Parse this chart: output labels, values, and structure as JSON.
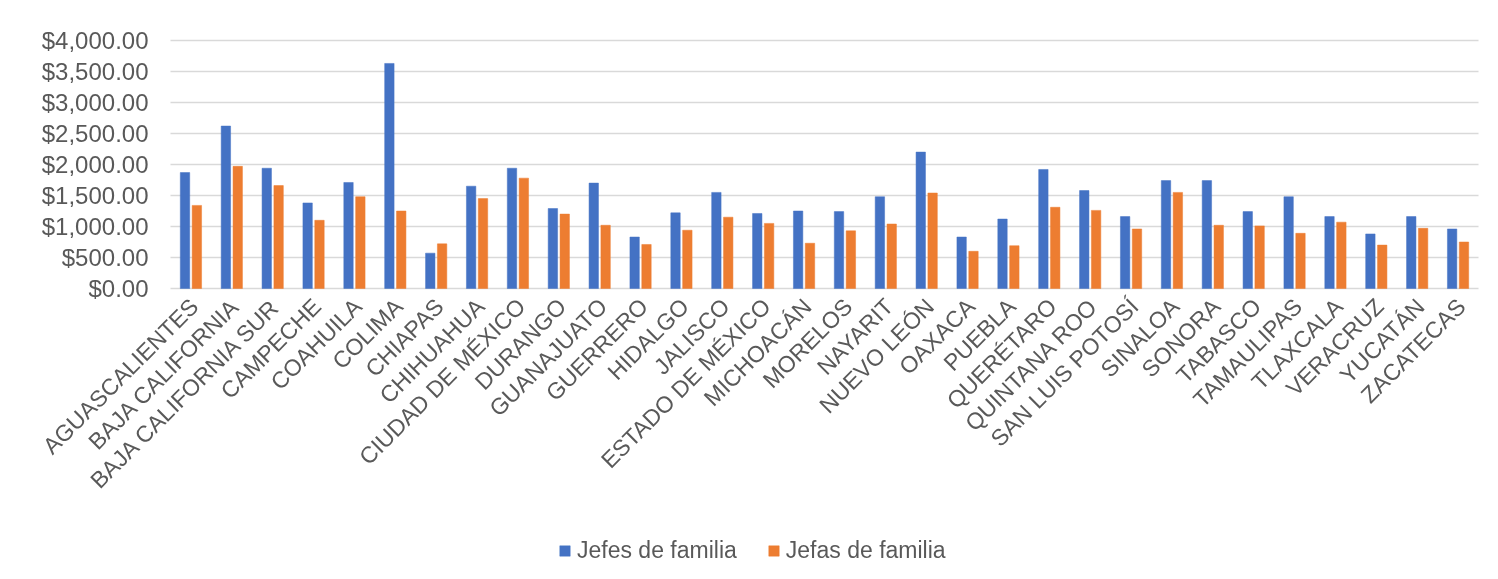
{
  "chart_data": {
    "type": "bar",
    "categories": [
      "AGUASCALIENTES",
      "BAJA CALIFORNIA",
      "BAJA CALIFORNIA SUR",
      "CAMPECHE",
      "COAHUILA",
      "COLIMA",
      "CHIAPAS",
      "CHIHUAHUA",
      "CIUDAD DE MÉXICO",
      "DURANGO",
      "GUANAJUATO",
      "GUERRERO",
      "HIDALGO",
      "JALISCO",
      "ESTADO DE MÉXICO",
      "MICHOACÁN",
      "MORELOS",
      "NAYARIT",
      "NUEVO LEÓN",
      "OAXACA",
      "PUEBLA",
      "QUERÉTARO",
      "QUINTANA ROO",
      "SAN LUIS POTOSÍ",
      "SINALOA",
      "SONORA",
      "TABASCO",
      "TAMAULIPAS",
      "TLAXCALA",
      "VERACRUZ",
      "YUCATÁN",
      "ZACATECAS"
    ],
    "series": [
      {
        "name": "Jefes de familia",
        "color": "#4472c4",
        "values": [
          1870,
          2620,
          1940,
          1380,
          1710,
          3630,
          570,
          1650,
          1940,
          1290,
          1700,
          830,
          1220,
          1550,
          1210,
          1250,
          1240,
          1480,
          2200,
          830,
          1120,
          1920,
          1580,
          1160,
          1740,
          1740,
          1240,
          1480,
          1160,
          880,
          1160,
          960
        ]
      },
      {
        "name": "Jefas de familia",
        "color": "#ed7d31",
        "values": [
          1340,
          1970,
          1660,
          1100,
          1480,
          1250,
          720,
          1450,
          1780,
          1200,
          1020,
          710,
          940,
          1150,
          1050,
          730,
          930,
          1040,
          1540,
          600,
          690,
          1310,
          1260,
          960,
          1550,
          1020,
          1010,
          890,
          1070,
          700,
          970,
          750
        ]
      }
    ],
    "ylim": [
      0,
      4000
    ],
    "yticks": [
      {
        "value": 0,
        "label": "$0.00"
      },
      {
        "value": 500,
        "label": "$500.00"
      },
      {
        "value": 1000,
        "label": "$1,000.00"
      },
      {
        "value": 1500,
        "label": "$1,500.00"
      },
      {
        "value": 2000,
        "label": "$2,000.00"
      },
      {
        "value": 2500,
        "label": "$2,500.00"
      },
      {
        "value": 3000,
        "label": "$3,000.00"
      },
      {
        "value": 3500,
        "label": "$3,500.00"
      },
      {
        "value": 4000,
        "label": "$4,000.00"
      }
    ],
    "grid": "y",
    "legend": "bottom"
  }
}
